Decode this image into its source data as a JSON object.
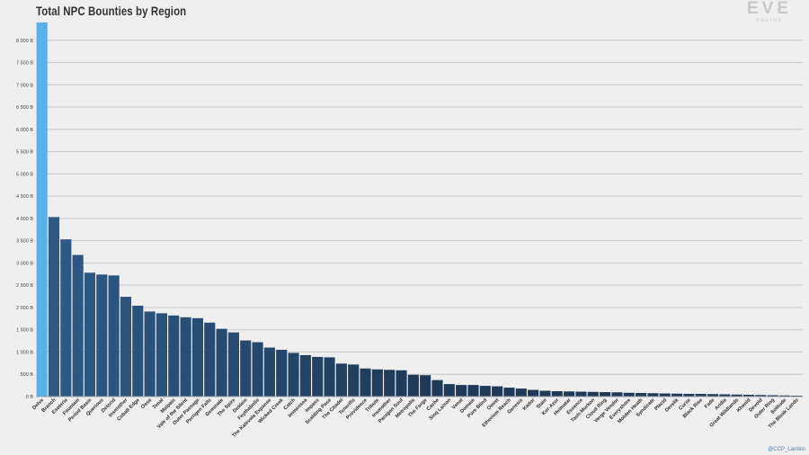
{
  "title": "Total NPC Bounties by Region",
  "logo": {
    "text": "EVE",
    "subtitle": "ONLINE"
  },
  "credit": "@CCP_Larrikin",
  "colors": {
    "highlight": "#5bb0ec",
    "bar_dark": "#1e3a58",
    "bar_mid": "#2f5a84",
    "grid": "#c9c9cb"
  },
  "chart_data": {
    "type": "bar",
    "title": "Total NPC Bounties by Region",
    "xlabel": "",
    "ylabel": "",
    "ylim": [
      0,
      8500
    ],
    "yticks": [
      0,
      500,
      1000,
      1500,
      2000,
      2500,
      3000,
      3500,
      4000,
      4500,
      5000,
      5500,
      6000,
      6500,
      7000,
      7500,
      8000
    ],
    "ytick_labels": [
      "0 B",
      "500 B",
      "1 000 B",
      "1 500 B",
      "2 000 B",
      "2 500 B",
      "3 000 B",
      "3 500 B",
      "4 000 B",
      "4 500 B",
      "5 000 B",
      "5 500 B",
      "6 000 B",
      "6 500 B",
      "7 000 B",
      "7 500 B",
      "8 000 B"
    ],
    "grid": true,
    "categories": [
      "Delve",
      "Branch",
      "Esoteria",
      "Fountain",
      "Period Basis",
      "Querious",
      "Detorid",
      "Insmother",
      "Cobalt Edge",
      "Oasa",
      "Tenal",
      "Malpais",
      "Vale of the Silent",
      "Outer Passage",
      "Perrigen Falls",
      "Geminate",
      "The Spire",
      "Deklein",
      "Feythabolis",
      "The Kalevala Expanse",
      "Wicked Creek",
      "Catch",
      "Immensea",
      "Impass",
      "Scalding Pass",
      "The Citadel",
      "Tenerifis",
      "Providence",
      "Tribute",
      "Insmother",
      "Paragon Soul",
      "Metropolis",
      "The Forge",
      "Cache",
      "Sinq Laison",
      "Venal",
      "Domain",
      "Pure Blind",
      "Omist",
      "Etherium Reach",
      "Genesis",
      "Kador",
      "Stain",
      "Kor-Azor",
      "Heimatar",
      "Essence",
      "Tash-Murkon",
      "Cloud Ring",
      "Verge Vendor",
      "Everyshore",
      "Molden Heath",
      "Syndicate",
      "Placid",
      "Derelik",
      "Curse",
      "Black Rise",
      "Fade",
      "Aridia",
      "Great Wildlands",
      "Khanid",
      "Devoid",
      "Outer Ring",
      "Solitude",
      "The Bleak Lands"
    ],
    "values": [
      8400,
      4030,
      3530,
      3180,
      2780,
      2740,
      2720,
      2240,
      2040,
      1910,
      1870,
      1820,
      1780,
      1760,
      1660,
      1520,
      1440,
      1260,
      1220,
      1100,
      1050,
      980,
      930,
      890,
      880,
      740,
      720,
      630,
      610,
      600,
      590,
      490,
      480,
      370,
      280,
      260,
      260,
      240,
      230,
      200,
      180,
      150,
      130,
      120,
      115,
      110,
      105,
      100,
      95,
      85,
      80,
      75,
      70,
      65,
      60,
      60,
      55,
      50,
      45,
      40,
      35,
      30,
      25,
      20
    ]
  }
}
